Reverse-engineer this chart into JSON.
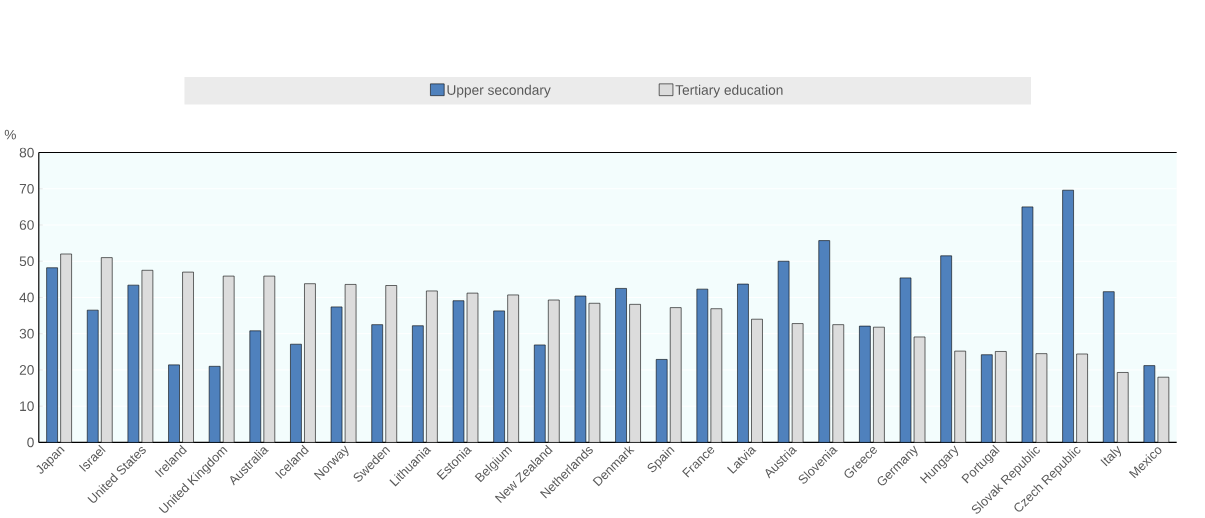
{
  "chart_data": {
    "type": "bar",
    "ylabel": "%",
    "categories": [
      "Japan",
      "Israel",
      "United States",
      "Ireland",
      "United Kingdom",
      "Australia",
      "Iceland",
      "Norway",
      "Sweden",
      "Lithuania",
      "Estonia",
      "Belgium",
      "New Zealand",
      "Netherlands",
      "Denmark",
      "Spain",
      "France",
      "Latvia",
      "Austria",
      "Slovenia",
      "Greece",
      "Germany",
      "Hungary",
      "Portugal",
      "Slovak Republic",
      "Czech Republic",
      "Italy",
      "Mexico"
    ],
    "series": [
      {
        "name": "Upper secondary",
        "color": "#4f81bd",
        "values": [
          48.2,
          36.5,
          43.4,
          21.4,
          21.0,
          30.8,
          27.1,
          37.4,
          32.5,
          32.2,
          39.1,
          36.3,
          26.9,
          40.4,
          42.5,
          22.9,
          42.3,
          43.7,
          50.0,
          55.7,
          32.1,
          45.4,
          51.5,
          24.2,
          65.0,
          69.6,
          41.6,
          21.2
        ]
      },
      {
        "name": "Tertiary education",
        "color": "#dcdcdc",
        "values": [
          52.0,
          51.0,
          47.5,
          47.0,
          45.9,
          45.9,
          43.8,
          43.6,
          43.3,
          41.8,
          41.2,
          40.7,
          39.3,
          38.4,
          38.1,
          37.2,
          36.9,
          34.0,
          32.8,
          32.5,
          31.8,
          29.1,
          25.2,
          25.1,
          24.5,
          24.4,
          19.3,
          18.0
        ]
      }
    ],
    "ylim": [
      0,
      80
    ],
    "yticks": [
      0,
      10,
      20,
      30,
      40,
      50,
      60,
      70,
      80
    ],
    "grid": "y",
    "legend": "top"
  }
}
